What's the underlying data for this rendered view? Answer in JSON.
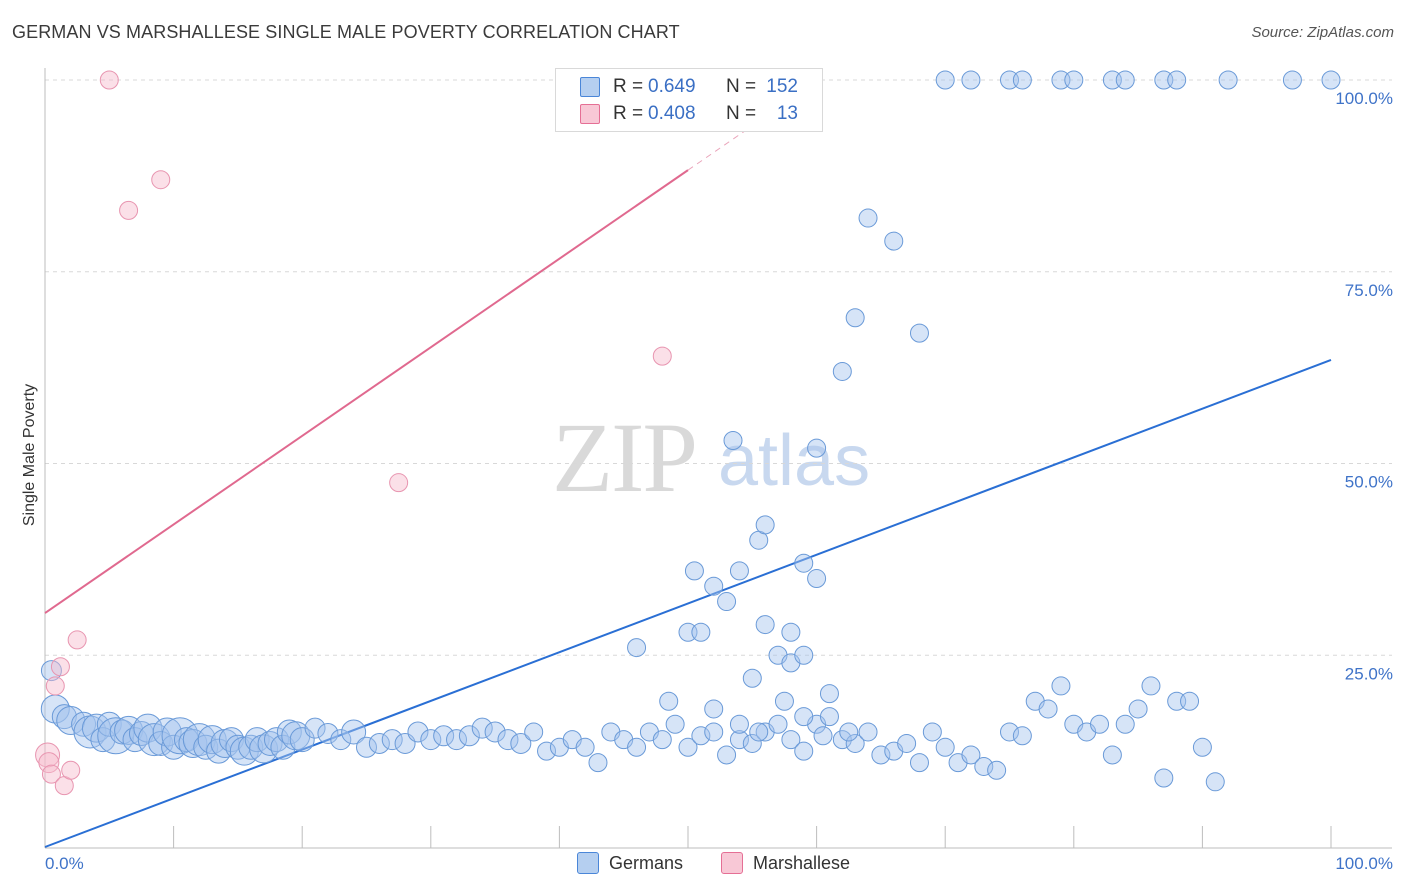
{
  "title": "GERMAN VS MARSHALLESE SINGLE MALE POVERTY CORRELATION CHART",
  "source": "Source: ZipAtlas.com",
  "watermark": {
    "zip": "ZIP",
    "atlas": "atlas"
  },
  "colors": {
    "blue": "#4a86d8",
    "blue_fill": "#b5cff0",
    "pink": "#e56f95",
    "pink_fill": "#f8c8d6",
    "tick": "#3f73c8"
  },
  "legend": {
    "rows": [
      {
        "swatch_color": "#b5cff0",
        "r_label": "R = ",
        "r_value": "0.649",
        "n_label": "N = ",
        "n_value": "152"
      },
      {
        "swatch_color": "#f8c8d6",
        "r_label": "R = ",
        "r_value": "0.408",
        "n_label": "N = ",
        "n_value": "13"
      }
    ]
  },
  "bottom_legend": [
    {
      "label": "Germans",
      "color": "#b5cff0"
    },
    {
      "label": "Marshallese",
      "color": "#f8c8d6"
    }
  ],
  "chart_data": {
    "type": "scatter",
    "title": "GERMAN VS MARSHALLESE SINGLE MALE POVERTY CORRELATION CHART",
    "xlabel": "",
    "ylabel": "Single Male Poverty",
    "xlim": [
      0,
      100
    ],
    "ylim": [
      0,
      100
    ],
    "x_tick_labels": [
      "0.0%",
      "100.0%"
    ],
    "y_tick_labels": [
      "25.0%",
      "50.0%",
      "75.0%",
      "100.0%"
    ],
    "y_ticks": [
      25,
      50,
      75,
      100
    ],
    "grid": "horizontal-dashed",
    "legend_position": "top-center",
    "series": [
      {
        "name": "Germans",
        "color": "#4a86d8",
        "trend": {
          "x": [
            0,
            100
          ],
          "y": [
            0,
            63.5
          ],
          "style": "solid"
        },
        "points": [
          [
            0.5,
            23,
            10
          ],
          [
            0.8,
            18,
            14
          ],
          [
            1.5,
            17,
            12
          ],
          [
            2,
            16.5,
            14
          ],
          [
            3,
            16,
            12
          ],
          [
            3.5,
            15,
            16
          ],
          [
            4,
            15.5,
            14
          ],
          [
            4.5,
            14,
            12
          ],
          [
            5,
            16,
            12
          ],
          [
            5.5,
            14.5,
            18
          ],
          [
            6,
            15,
            12
          ],
          [
            6.5,
            15.2,
            14
          ],
          [
            7,
            14,
            12
          ],
          [
            7.5,
            14.8,
            12
          ],
          [
            8,
            15.5,
            14
          ],
          [
            8.5,
            14,
            16
          ],
          [
            9,
            13.5,
            12
          ],
          [
            9.5,
            15,
            14
          ],
          [
            10,
            13,
            12
          ],
          [
            10.5,
            14.5,
            18
          ],
          [
            11,
            14,
            12
          ],
          [
            11.5,
            13.5,
            14
          ],
          [
            12,
            14,
            16
          ],
          [
            12.5,
            13,
            12
          ],
          [
            13,
            14,
            14
          ],
          [
            13.5,
            12.5,
            12
          ],
          [
            14,
            13.5,
            14
          ],
          [
            14.5,
            14,
            12
          ],
          [
            15,
            13,
            12
          ],
          [
            15.5,
            12.5,
            14
          ],
          [
            16,
            13,
            12
          ],
          [
            16.5,
            14,
            12
          ],
          [
            17,
            12.8,
            14
          ],
          [
            17.5,
            13.5,
            12
          ],
          [
            18,
            14,
            12
          ],
          [
            18.5,
            13,
            12
          ],
          [
            19,
            15,
            12
          ],
          [
            19.5,
            14.5,
            14
          ],
          [
            20,
            14,
            12
          ],
          [
            21,
            15.5,
            10
          ],
          [
            22,
            14.8,
            10
          ],
          [
            23,
            14,
            10
          ],
          [
            24,
            15,
            12
          ],
          [
            25,
            13,
            10
          ],
          [
            26,
            13.5,
            10
          ],
          [
            27,
            14,
            10
          ],
          [
            28,
            13.5,
            10
          ],
          [
            29,
            15,
            10
          ],
          [
            30,
            14,
            10
          ],
          [
            31,
            14.5,
            10
          ],
          [
            32,
            14,
            10
          ],
          [
            33,
            14.5,
            10
          ],
          [
            34,
            15.5,
            10
          ],
          [
            35,
            15,
            10
          ],
          [
            36,
            14,
            10
          ],
          [
            37,
            13.5,
            10
          ],
          [
            38,
            15,
            9
          ],
          [
            39,
            12.5,
            9
          ],
          [
            40,
            13,
            9
          ],
          [
            41,
            14,
            9
          ],
          [
            42,
            13,
            9
          ],
          [
            43,
            11,
            9
          ],
          [
            44,
            15,
            9
          ],
          [
            45,
            14,
            9
          ],
          [
            46,
            13,
            9
          ],
          [
            47,
            15,
            9
          ],
          [
            48,
            14,
            9
          ],
          [
            49,
            16,
            9
          ],
          [
            50,
            13,
            9
          ],
          [
            51,
            14.5,
            9
          ],
          [
            52,
            15,
            9
          ],
          [
            53,
            12,
            9
          ],
          [
            54,
            14,
            9
          ],
          [
            55,
            13.5,
            9
          ],
          [
            56,
            15,
            9
          ],
          [
            57,
            16,
            9
          ],
          [
            58,
            14,
            9
          ],
          [
            59,
            12.5,
            9
          ],
          [
            60,
            16,
            9
          ],
          [
            61,
            17,
            9
          ],
          [
            62,
            14,
            9
          ],
          [
            63,
            13.5,
            9
          ],
          [
            64,
            15,
            9
          ],
          [
            65,
            12,
            9
          ],
          [
            66,
            12.5,
            9
          ],
          [
            67,
            13.5,
            9
          ],
          [
            68,
            11,
            9
          ],
          [
            69,
            15,
            9
          ],
          [
            70,
            13,
            9
          ],
          [
            71,
            11,
            9
          ],
          [
            72,
            12,
            9
          ],
          [
            73,
            10.5,
            9
          ],
          [
            74,
            10,
            9
          ],
          [
            75,
            15,
            9
          ],
          [
            76,
            14.5,
            9
          ],
          [
            77,
            19,
            9
          ],
          [
            78,
            18,
            9
          ],
          [
            79,
            21,
            9
          ],
          [
            80,
            16,
            9
          ],
          [
            81,
            15,
            9
          ],
          [
            82,
            16,
            9
          ],
          [
            83,
            12,
            9
          ],
          [
            84,
            16,
            9
          ],
          [
            85,
            18,
            9
          ],
          [
            86,
            21,
            9
          ],
          [
            87,
            9,
            9
          ],
          [
            88,
            19,
            9
          ],
          [
            89,
            19,
            9
          ],
          [
            90,
            13,
            9
          ],
          [
            91,
            8.5,
            9
          ],
          [
            48.5,
            19,
            9
          ],
          [
            52,
            18,
            9
          ],
          [
            54,
            16,
            9
          ],
          [
            55.5,
            15,
            9
          ],
          [
            57.5,
            19,
            9
          ],
          [
            59,
            17,
            9
          ],
          [
            60.5,
            14.5,
            9
          ],
          [
            62.5,
            15,
            9
          ],
          [
            50,
            28,
            9
          ],
          [
            51,
            28,
            9
          ],
          [
            46,
            26,
            9
          ],
          [
            57,
            25,
            9
          ],
          [
            58,
            24,
            9
          ],
          [
            55,
            22,
            9
          ],
          [
            56,
            29,
            9
          ],
          [
            53,
            32,
            9
          ],
          [
            52,
            34,
            9
          ],
          [
            50.5,
            36,
            9
          ],
          [
            54,
            36,
            9
          ],
          [
            55.5,
            40,
            9
          ],
          [
            56,
            42,
            9
          ],
          [
            53.5,
            53,
            9
          ],
          [
            60,
            52,
            9
          ],
          [
            62,
            62,
            9
          ],
          [
            63,
            69,
            9
          ],
          [
            68,
            67,
            9
          ],
          [
            64,
            82,
            9
          ],
          [
            66,
            79,
            9
          ],
          [
            70,
            100,
            9
          ],
          [
            72,
            100,
            9
          ],
          [
            75,
            100,
            9
          ],
          [
            76,
            100,
            9
          ],
          [
            79,
            100,
            9
          ],
          [
            80,
            100,
            9
          ],
          [
            83,
            100,
            9
          ],
          [
            84,
            100,
            9
          ],
          [
            87,
            100,
            9
          ],
          [
            88,
            100,
            9
          ],
          [
            92,
            100,
            9
          ],
          [
            97,
            100,
            9
          ],
          [
            100,
            100,
            9
          ],
          [
            58,
            28,
            9
          ],
          [
            59,
            25,
            9
          ],
          [
            59,
            37,
            9
          ],
          [
            60,
            35,
            9
          ],
          [
            61,
            20,
            9
          ]
        ]
      },
      {
        "name": "Marshallese",
        "color": "#e56f95",
        "trend": {
          "x": [
            0,
            100
          ],
          "y": [
            30.5,
            146
          ],
          "solid_until_x": 50
        },
        "points": [
          [
            0.2,
            12,
            12
          ],
          [
            0.3,
            11,
            10
          ],
          [
            0.5,
            9.5,
            9
          ],
          [
            0.8,
            21,
            9
          ],
          [
            1.2,
            23.5,
            9
          ],
          [
            1.5,
            8,
            9
          ],
          [
            2,
            10,
            9
          ],
          [
            2.5,
            27,
            9
          ],
          [
            5,
            100,
            9
          ],
          [
            6.5,
            83,
            9
          ],
          [
            9,
            87,
            9
          ],
          [
            27.5,
            47.5,
            9
          ],
          [
            48,
            64,
            9
          ]
        ]
      }
    ]
  }
}
